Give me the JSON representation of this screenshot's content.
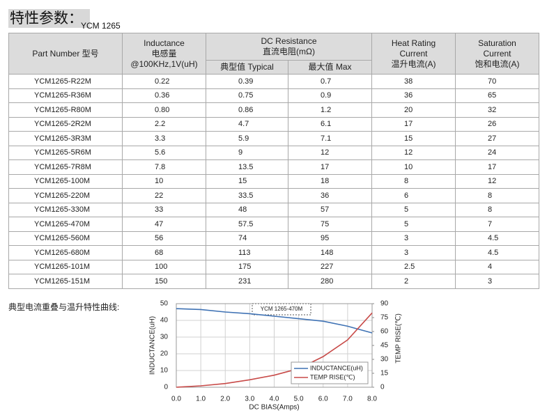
{
  "header": {
    "title": "特性参数：",
    "model": "YCM 1265"
  },
  "table": {
    "columns": [
      {
        "lines": [
          "Part Number  型号"
        ]
      },
      {
        "lines": [
          "Inductance",
          "电感量",
          "@100KHz,1V(uH)"
        ]
      },
      {
        "lines": [
          "DC Resistance",
          "直流电阻(mΩ)"
        ],
        "sub": [
          "典型值 Typical",
          "最大值 Max"
        ]
      },
      {
        "lines": [
          "Heat Rating",
          "Current",
          "温升电流(A)"
        ]
      },
      {
        "lines": [
          "Saturation",
          "Current",
          "饱和电流(A)"
        ]
      }
    ],
    "rows": [
      [
        "YCM1265-R22M",
        "0.22",
        "0.39",
        "0.7",
        "38",
        "70"
      ],
      [
        "YCM1265-R36M",
        "0.36",
        "0.75",
        "0.9",
        "36",
        "65"
      ],
      [
        "YCM1265-R80M",
        "0.80",
        "0.86",
        "1.2",
        "20",
        "32"
      ],
      [
        "YCM1265-2R2M",
        "2.2",
        "4.7",
        "6.1",
        "17",
        "26"
      ],
      [
        "YCM1265-3R3M",
        "3.3",
        "5.9",
        "7.1",
        "15",
        "27"
      ],
      [
        "YCM1265-5R6M",
        "5.6",
        "9",
        "12",
        "12",
        "24"
      ],
      [
        "YCM1265-7R8M",
        "7.8",
        "13.5",
        "17",
        "10",
        "17"
      ],
      [
        "YCM1265-100M",
        "10",
        "15",
        "18",
        "8",
        "12"
      ],
      [
        "YCM1265-220M",
        "22",
        "33.5",
        "36",
        "6",
        "8"
      ],
      [
        "YCM1265-330M",
        "33",
        "48",
        "57",
        "5",
        "8"
      ],
      [
        "YCM1265-470M",
        "47",
        "57.5",
        "75",
        "5",
        "7"
      ],
      [
        "YCM1265-560M",
        "56",
        "74",
        "95",
        "3",
        "4.5"
      ],
      [
        "YCM1265-680M",
        "68",
        "113",
        "148",
        "3",
        "4.5"
      ],
      [
        "YCM1265-101M",
        "100",
        "175",
        "227",
        "2.5",
        "4"
      ],
      [
        "YCM1265-151M",
        "150",
        "231",
        "280",
        "2",
        "3"
      ]
    ]
  },
  "caption": "典型电流重叠与温升特性曲线:",
  "chart_data": {
    "type": "line",
    "annotation": "YCM 1265-470M",
    "x_label": "DC BIAS(Amps)",
    "y_label": "INDUCTANCE(uH)",
    "y2_label": "TEMP RISE(℃)",
    "x": [
      0,
      1,
      2,
      3,
      4,
      5,
      6,
      7,
      8
    ],
    "series": [
      {
        "name": "INDUCTANCE(uH)",
        "color": "#3f72b4",
        "values": [
          47,
          46.5,
          45,
          44,
          42.5,
          41,
          39.5,
          36.5,
          32.5
        ]
      },
      {
        "name": "TEMP RISE(℃)",
        "color": "#c84a48",
        "axis": "y2",
        "values": [
          0,
          1.5,
          4,
          8,
          13,
          20,
          33,
          51,
          80
        ]
      }
    ],
    "xlim": [
      0,
      8
    ],
    "xticks": [
      {
        "value": 0,
        "label": "0.0"
      },
      {
        "value": 1,
        "label": "1.0"
      },
      {
        "value": 2,
        "label": "2.0"
      },
      {
        "value": 3,
        "label": "3.0"
      },
      {
        "value": 4,
        "label": "4.0"
      },
      {
        "value": 5,
        "label": "5.0"
      },
      {
        "value": 6,
        "label": "6.0"
      },
      {
        "value": 7,
        "label": "7.0"
      },
      {
        "value": 8,
        "label": "8.0"
      }
    ],
    "ylim": [
      0,
      50
    ],
    "yticks": [
      0,
      10,
      20,
      30,
      40,
      50
    ],
    "y2lim": [
      0,
      90
    ],
    "y2ticks": [
      0,
      15,
      30,
      45,
      60,
      75,
      90
    ],
    "grid": true
  }
}
